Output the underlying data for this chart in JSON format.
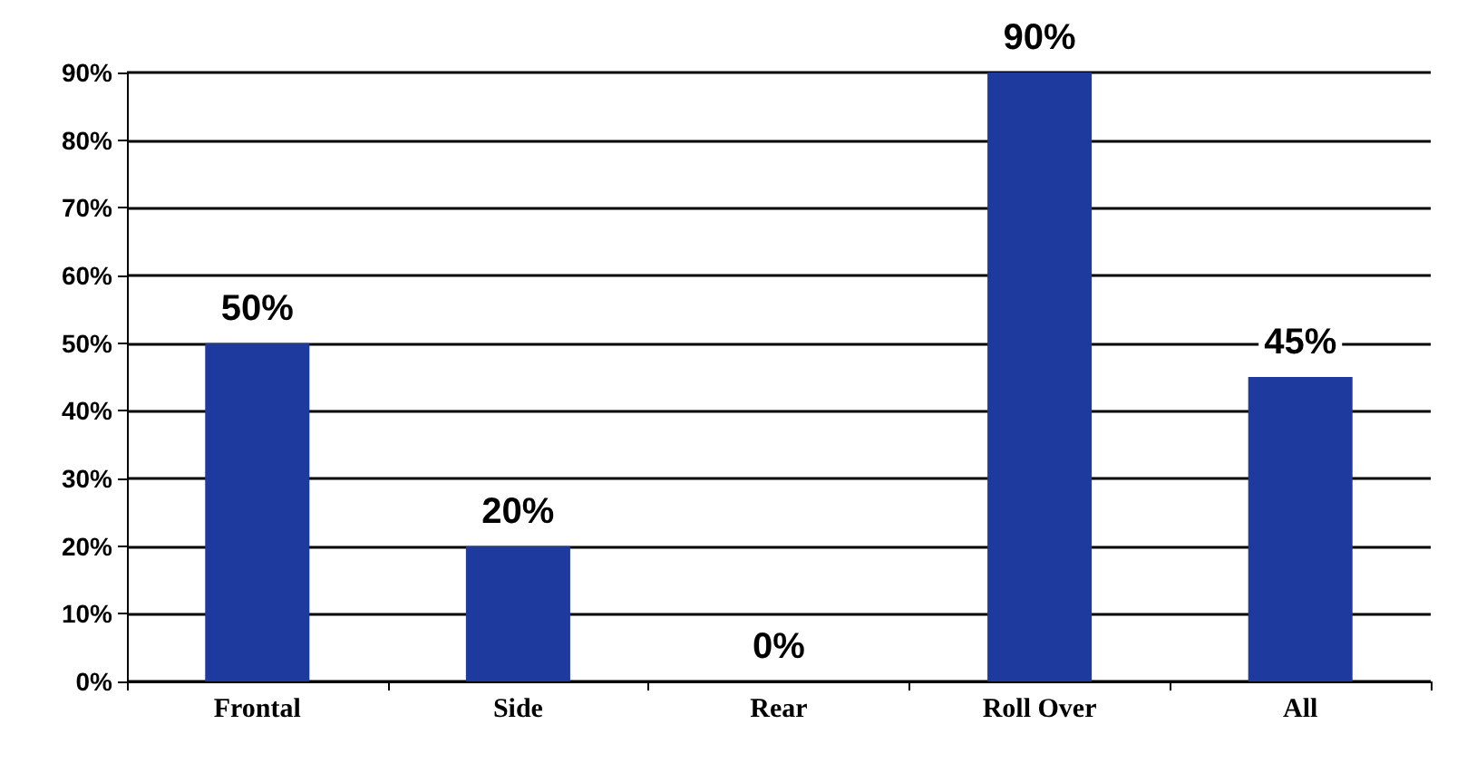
{
  "chart_data": {
    "type": "bar",
    "categories": [
      "Frontal",
      "Side",
      "Rear",
      "Roll Over",
      "All"
    ],
    "values": [
      50,
      20,
      0,
      90,
      45
    ],
    "value_labels": [
      "50%",
      "20%",
      "0%",
      "90%",
      "45%"
    ],
    "color": "#1f3a9e",
    "ylim": [
      0,
      90
    ],
    "yticks": [
      {
        "value": 0,
        "label": "0%"
      },
      {
        "value": 10,
        "label": "10%"
      },
      {
        "value": 20,
        "label": "20%"
      },
      {
        "value": 30,
        "label": "30%"
      },
      {
        "value": 40,
        "label": "40%"
      },
      {
        "value": 50,
        "label": "50%"
      },
      {
        "value": 60,
        "label": "60%"
      },
      {
        "value": 70,
        "label": "70%"
      },
      {
        "value": 80,
        "label": "80%"
      },
      {
        "value": 90,
        "label": "90%"
      }
    ],
    "grid": "y"
  }
}
